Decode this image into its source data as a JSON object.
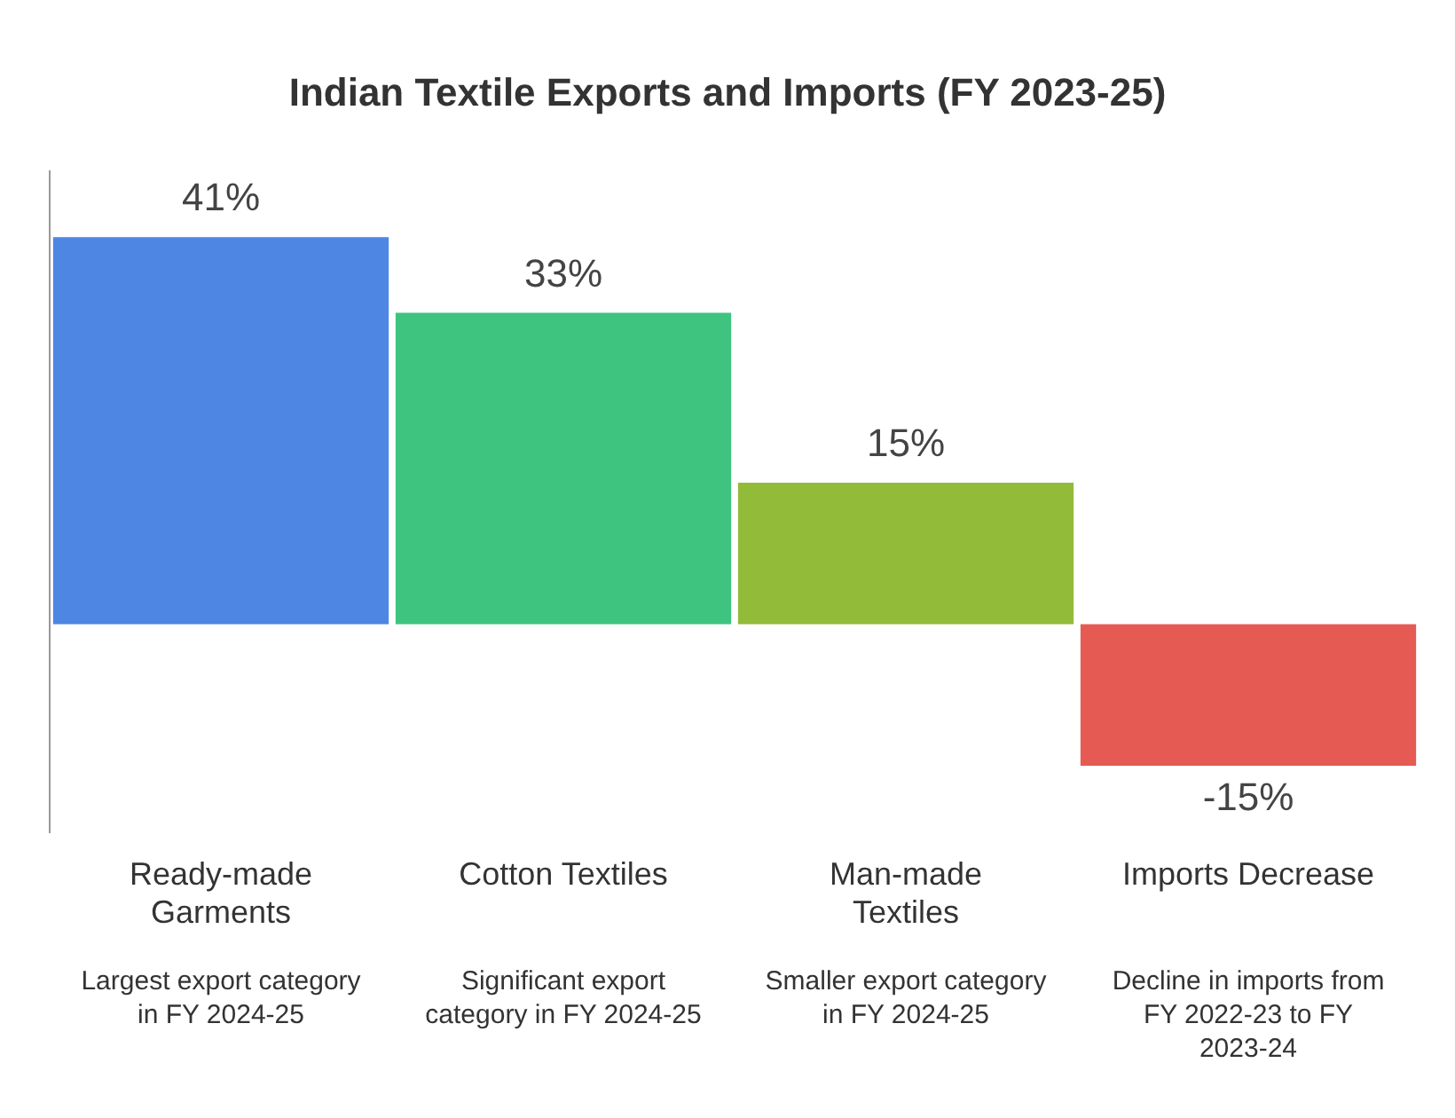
{
  "chart_data": {
    "type": "bar",
    "title": "Indian Textile Exports and Imports (FY 2023-25)",
    "categories": [
      "Ready-made Garments",
      "Cotton Textiles",
      "Man-made Textiles",
      "Imports Decrease"
    ],
    "values": [
      41,
      33,
      15,
      -15
    ],
    "colors": [
      "#4e86e4",
      "#3ec47f",
      "#93bb3a",
      "#e55a52"
    ],
    "value_labels": [
      "41%",
      "33%",
      "15%",
      "-15%"
    ],
    "ylim": [
      -22,
      48
    ],
    "annotations": [
      "Largest export category in FY 2024-25",
      "Significant export category in FY 2024-25",
      "Smaller export category in FY 2024-25",
      "Decline in imports from FY 2022-23 to FY 2023-24"
    ],
    "legend": false,
    "grid": false
  }
}
